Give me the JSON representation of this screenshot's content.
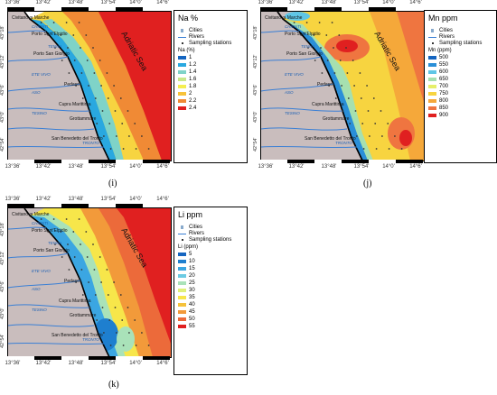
{
  "panels": [
    {
      "id": "i",
      "caption": "(i)",
      "legend_title": "Na %",
      "unit_title": "Na (%)",
      "classes": [
        "1",
        "1.2",
        "1.4",
        "1.6",
        "1.8",
        "2",
        "2.2",
        "2.4"
      ],
      "class_colors": [
        "#1565c0",
        "#29a8e0",
        "#7fd3c8",
        "#c8e88a",
        "#f5ee50",
        "#f7c23a",
        "#f08a35",
        "#e02020"
      ]
    },
    {
      "id": "j",
      "caption": "(j)",
      "legend_title": "Mn ppm",
      "unit_title": "Mn (ppm)",
      "classes": [
        "500",
        "550",
        "600",
        "650",
        "700",
        "750",
        "800",
        "850",
        "900"
      ],
      "class_colors": [
        "#1565c0",
        "#2a8fd8",
        "#5fc6e6",
        "#a6e0b0",
        "#e6ef6a",
        "#f7d440",
        "#f5a83a",
        "#ef7540",
        "#e02020"
      ]
    },
    {
      "id": "k",
      "caption": "(k)",
      "legend_title": "Li ppm",
      "unit_title": "Li (ppm)",
      "classes": [
        "5",
        "10",
        "15",
        "20",
        "25",
        "30",
        "35",
        "40",
        "45",
        "50",
        "55"
      ],
      "class_colors": [
        "#1565c0",
        "#1e7fcf",
        "#3ba6e2",
        "#6ccbe3",
        "#a9e2b9",
        "#dff07a",
        "#f7e64a",
        "#f5c23c",
        "#f29a3a",
        "#ec6a3a",
        "#e02020"
      ]
    }
  ],
  "legend_common": {
    "cities_label": "Cities",
    "rivers_label": "Rivers",
    "stations_label": "Sampling stations"
  },
  "map_labels": {
    "sea": "Adriatic Sea",
    "cities": [
      "Civitanova Marche",
      "Porto Sant'Elpidio",
      "Porto San Giorgio",
      "Pedaso",
      "Cupra Marittima",
      "Grottammare",
      "San Benedetto del Tronto"
    ],
    "rivers": [
      "CHIENTI",
      "TENNA",
      "ETE VIVO",
      "ASO",
      "TESINO",
      "TRONTO"
    ]
  },
  "axes": {
    "x_ticks": [
      "13°36'",
      "13°42'",
      "13°48'",
      "13°54'",
      "14°0'",
      "14°6'"
    ],
    "y_ticks": [
      "43°18'",
      "43°12'",
      "43°6'",
      "43°0'",
      "42°54'"
    ]
  },
  "colors": {
    "land": "#c9bdbd",
    "river": "#3a7fd5",
    "coast": "#000000"
  }
}
